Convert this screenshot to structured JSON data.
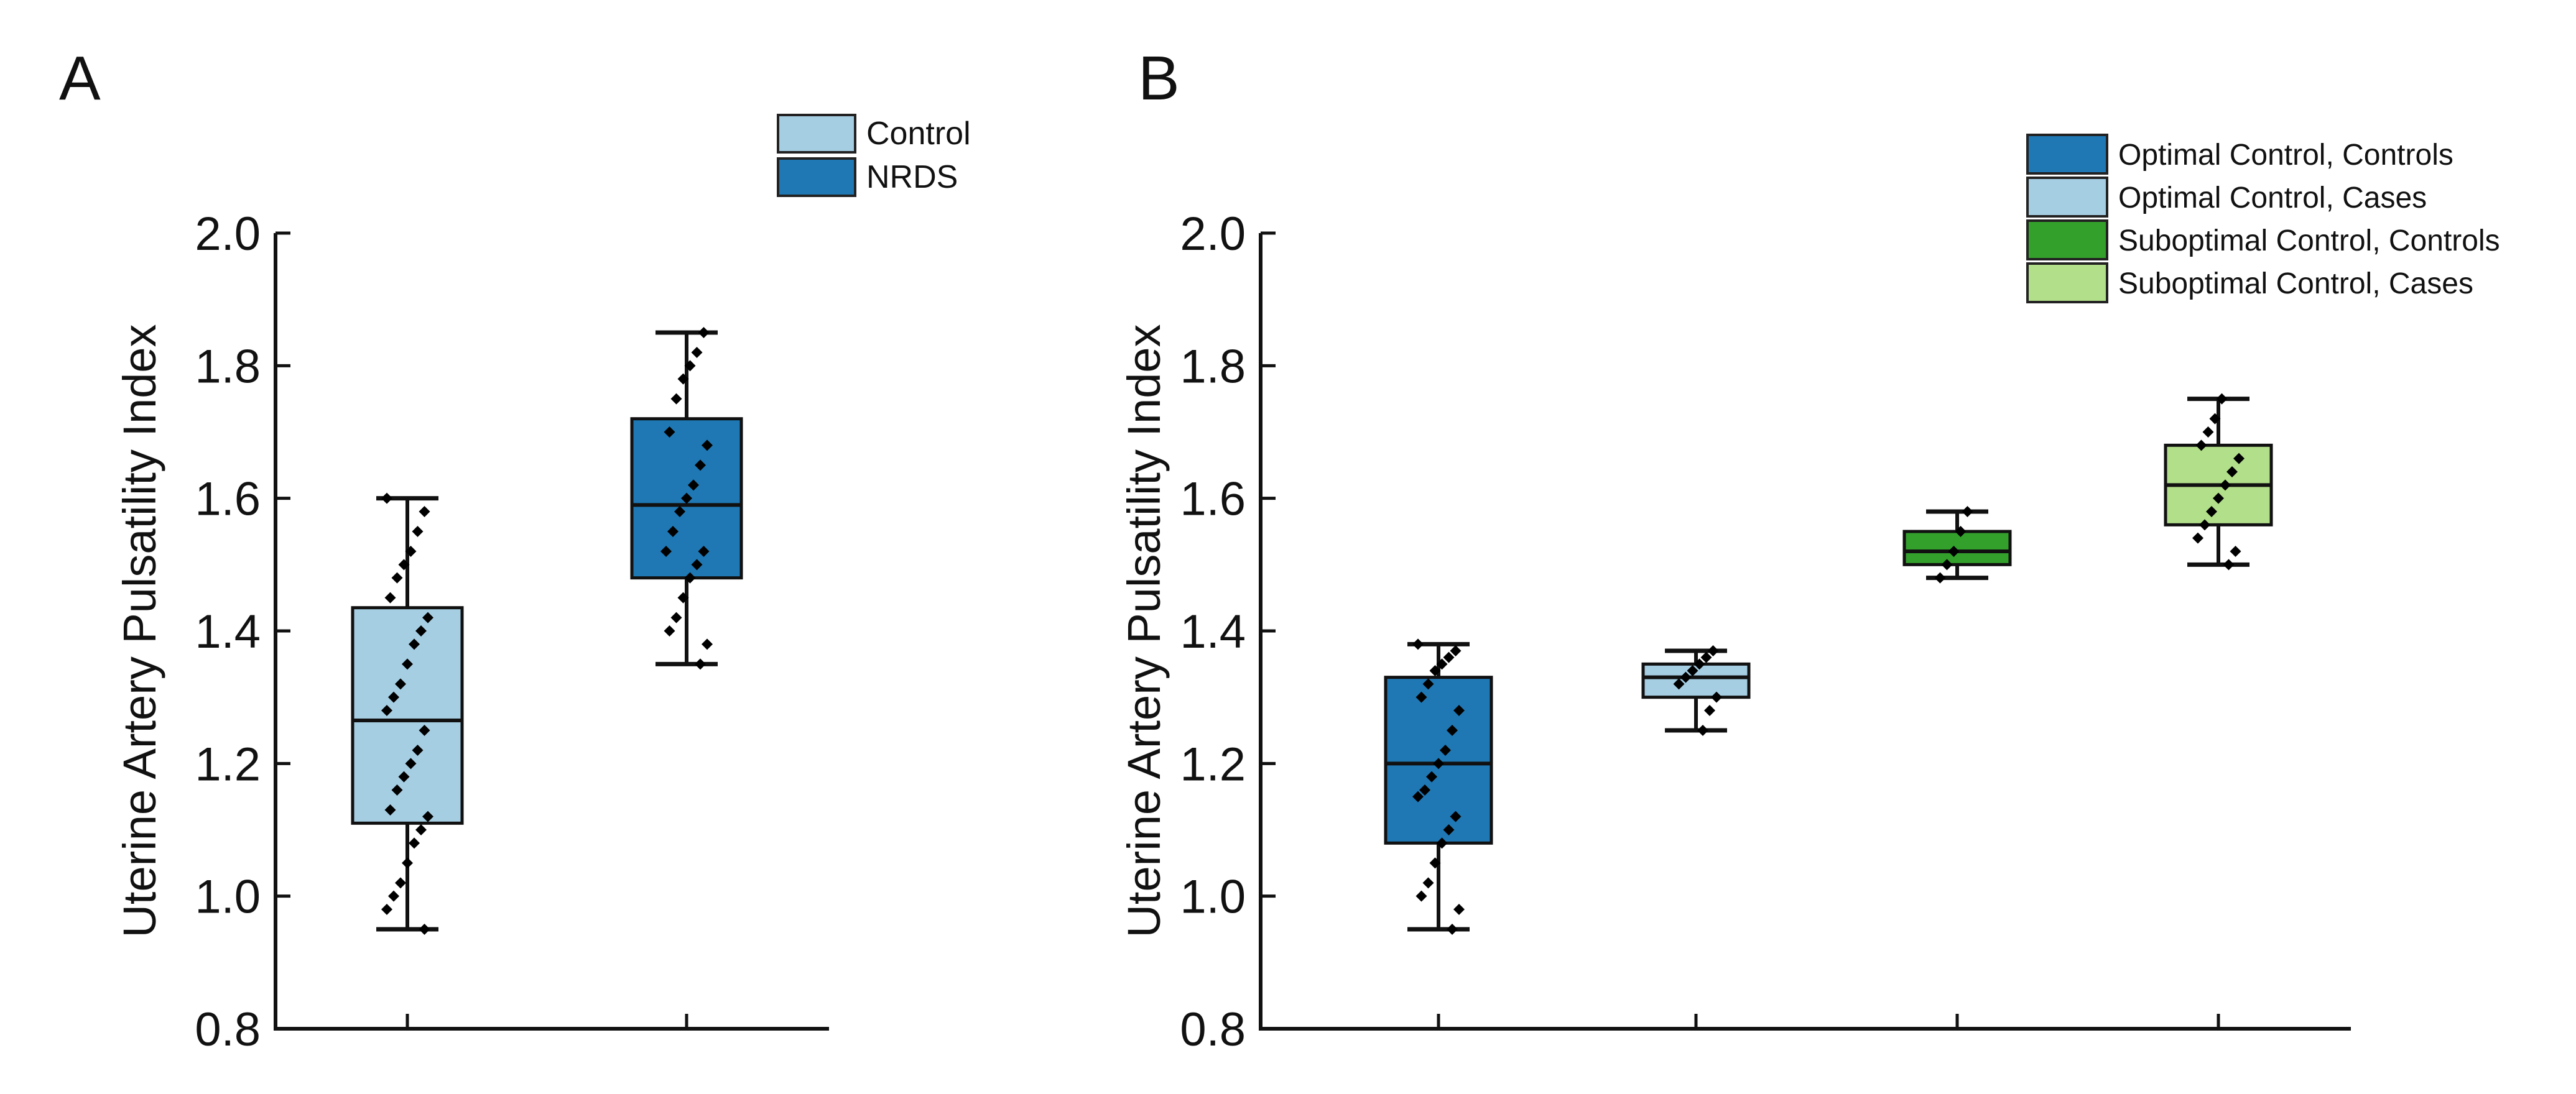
{
  "chart_data": [
    {
      "type": "box",
      "panel_label": "A",
      "ylabel": "Uterine Artery Pulsatility Index",
      "ylim": [
        0.8,
        2.0
      ],
      "yticks": [
        "0.8",
        "1.0",
        "1.2",
        "1.4",
        "1.6",
        "1.8",
        "2.0"
      ],
      "grid": false,
      "legend_position": "top-right",
      "series": [
        {
          "name": "Control",
          "color": "#a6cee3",
          "min": 0.95,
          "q1": 1.11,
          "median": 1.265,
          "q3": 1.435,
          "max": 1.6,
          "points": [
            1.6,
            1.58,
            1.55,
            1.52,
            1.5,
            1.48,
            1.45,
            1.42,
            1.4,
            1.38,
            1.35,
            1.32,
            1.3,
            1.28,
            1.25,
            1.22,
            1.2,
            1.18,
            1.16,
            1.13,
            1.12,
            1.1,
            1.08,
            1.05,
            1.02,
            1.0,
            0.98,
            0.95
          ]
        },
        {
          "name": "NRDS",
          "color": "#1f78b4",
          "min": 1.35,
          "q1": 1.48,
          "median": 1.59,
          "q3": 1.72,
          "max": 1.85,
          "points": [
            1.85,
            1.82,
            1.8,
            1.78,
            1.75,
            1.7,
            1.68,
            1.65,
            1.62,
            1.6,
            1.58,
            1.55,
            1.52,
            1.52,
            1.5,
            1.48,
            1.45,
            1.42,
            1.4,
            1.38,
            1.35
          ]
        }
      ]
    },
    {
      "type": "box",
      "panel_label": "B",
      "ylabel": "Uterine Artery Pulsatility Index",
      "ylim": [
        0.8,
        2.0
      ],
      "yticks": [
        "0.8",
        "1.0",
        "1.2",
        "1.4",
        "1.6",
        "1.8",
        "2.0"
      ],
      "grid": false,
      "legend_position": "top-right",
      "series": [
        {
          "name": "Optimal Control, Controls",
          "color": "#1f78b4",
          "min": 0.95,
          "q1": 1.08,
          "median": 1.2,
          "q3": 1.33,
          "max": 1.38,
          "points": [
            1.38,
            1.37,
            1.36,
            1.35,
            1.34,
            1.32,
            1.3,
            1.28,
            1.25,
            1.22,
            1.2,
            1.18,
            1.16,
            1.15,
            1.12,
            1.1,
            1.08,
            1.05,
            1.02,
            1.0,
            0.98,
            0.95
          ]
        },
        {
          "name": "Optimal Control, Cases",
          "color": "#a6cee3",
          "min": 1.25,
          "q1": 1.3,
          "median": 1.33,
          "q3": 1.35,
          "max": 1.37,
          "points": [
            1.37,
            1.36,
            1.35,
            1.34,
            1.33,
            1.32,
            1.3,
            1.28,
            1.25
          ]
        },
        {
          "name": "Suboptimal Control, Controls",
          "color": "#33a02c",
          "min": 1.48,
          "q1": 1.5,
          "median": 1.52,
          "q3": 1.55,
          "max": 1.58,
          "points": [
            1.58,
            1.55,
            1.52,
            1.5,
            1.48
          ]
        },
        {
          "name": "Suboptimal Control, Cases",
          "color": "#b2df8a",
          "min": 1.5,
          "q1": 1.56,
          "median": 1.62,
          "q3": 1.68,
          "max": 1.75,
          "points": [
            1.75,
            1.72,
            1.7,
            1.68,
            1.66,
            1.64,
            1.62,
            1.6,
            1.58,
            1.56,
            1.54,
            1.52,
            1.5
          ]
        }
      ]
    }
  ]
}
